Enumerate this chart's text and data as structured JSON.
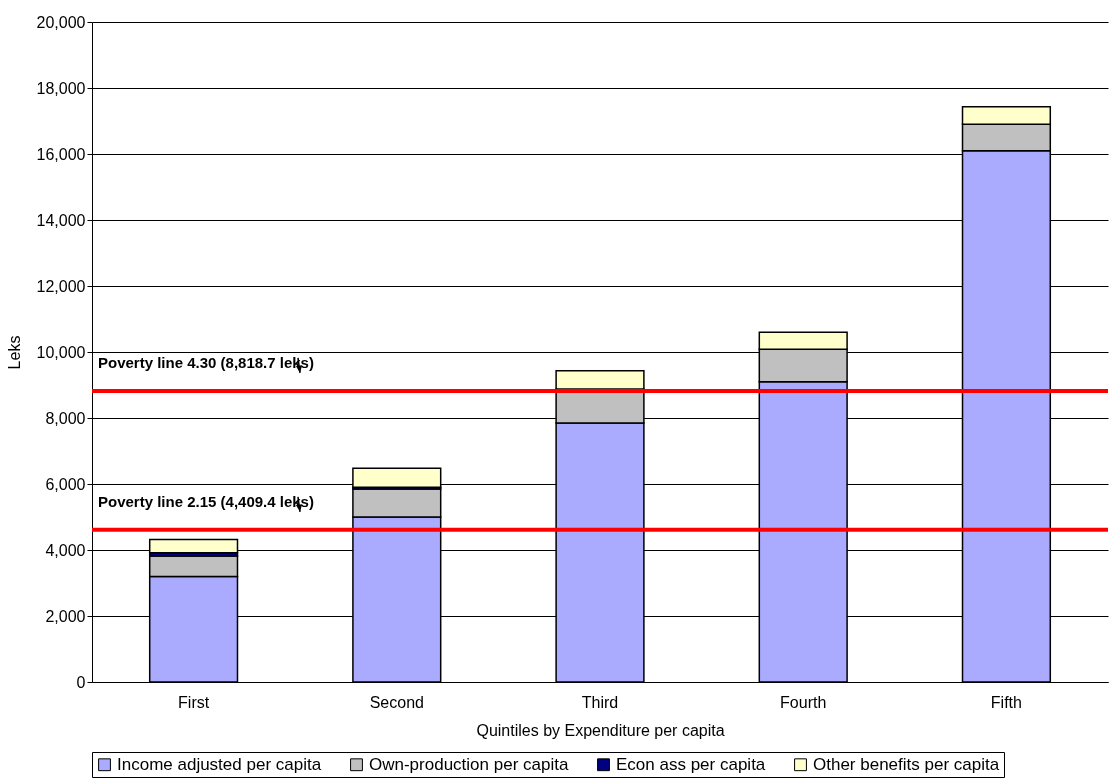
{
  "chart_data": {
    "type": "bar",
    "stacked": true,
    "xlabel": "Quintiles  by Expenditure per capita",
    "ylabel": "Leks",
    "categories": [
      "First",
      "Second",
      "Third",
      "Fourth",
      "Fifth"
    ],
    "series": [
      {
        "name": "Income adjusted per capita",
        "color": "#aaaaff",
        "values": [
          3200,
          5000,
          7850,
          9100,
          16100
        ]
      },
      {
        "name": "Own-production per capita",
        "color": "#c0c0c0",
        "values": [
          620,
          850,
          1030,
          980,
          800
        ]
      },
      {
        "name": "Econ ass per capita",
        "color": "#000080",
        "values": [
          100,
          50,
          null,
          null,
          null
        ]
      },
      {
        "name": "Other benefits per capita",
        "color": "#ffffcc",
        "values": [
          400,
          580,
          550,
          520,
          530
        ]
      }
    ],
    "ylim": [
      0,
      20000
    ],
    "yticks": [
      0,
      {
        "value": 2000,
        "label": "2,000"
      },
      {
        "value": 4000,
        "label": "4,000"
      },
      {
        "value": 6000,
        "label": "6,000"
      },
      {
        "value": 8000,
        "label": "8,000"
      },
      {
        "value": 10000,
        "label": "10,000"
      },
      {
        "value": 12000,
        "label": "12,000"
      },
      {
        "value": 14000,
        "label": "14,000"
      },
      {
        "value": 16000,
        "label": "16,000"
      },
      {
        "value": 18000,
        "label": "18,000"
      },
      {
        "value": 20000,
        "label": "20,000"
      }
    ],
    "grid": "y",
    "legend": "bottom",
    "ref_lines": [
      {
        "axis": "y",
        "value": 8820,
        "label": "Poverty line 4.30 (8,818.7 leks)",
        "color": "#ff0000"
      },
      {
        "axis": "y",
        "value": 4610,
        "label": "Poverty line 2.15 (4,409.4 leks)",
        "color": "#ff0000"
      }
    ]
  }
}
